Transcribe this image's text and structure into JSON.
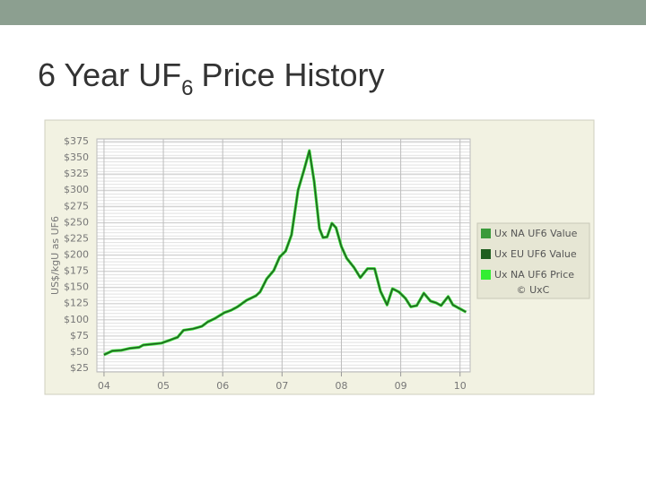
{
  "slide": {
    "title": {
      "main": "6 Year UF",
      "subscript": "6",
      "rest": "Price History"
    }
  },
  "chart_data": {
    "type": "line",
    "ylabel": "US$/kgU as UF6",
    "source": "© UxC",
    "x": [
      2004.0,
      2004.14,
      2004.29,
      2004.44,
      2004.59,
      2004.66,
      2004.82,
      2004.97,
      2005.12,
      2005.24,
      2005.34,
      2005.5,
      2005.65,
      2005.75,
      2005.87,
      2006.03,
      2006.15,
      2006.25,
      2006.4,
      2006.56,
      2006.63,
      2006.74,
      2006.86,
      2006.96,
      2007.06,
      2007.16,
      2007.27,
      2007.37,
      2007.46,
      2007.54,
      2007.63,
      2007.69,
      2007.76,
      2007.84,
      2007.91,
      2008.0,
      2008.09,
      2008.21,
      2008.32,
      2008.44,
      2008.56,
      2008.66,
      2008.77,
      2008.86,
      2008.97,
      2009.08,
      2009.17,
      2009.27,
      2009.39,
      2009.5,
      2009.6,
      2009.68,
      2009.8,
      2009.88,
      2009.98,
      2010.1
    ],
    "series": [
      {
        "name": "Ux NA UF6 Price",
        "color": "#33ee33",
        "values": [
          46,
          52,
          53,
          56,
          57.5,
          61,
          62.5,
          64,
          69,
          73,
          84,
          86,
          90,
          97,
          102,
          111,
          115,
          120,
          130,
          137,
          143,
          163,
          176,
          197,
          206,
          231,
          300,
          331,
          361,
          314,
          241,
          227,
          228,
          249,
          242,
          213,
          195,
          181,
          165,
          179,
          179,
          144,
          123,
          148,
          143,
          133,
          120,
          122,
          141,
          129,
          126,
          122,
          136,
          123,
          118,
          112
        ]
      },
      {
        "name": "Ux NA UF6 Value",
        "color": "#3a9a3a",
        "values": [
          46,
          52,
          53,
          56,
          57.5,
          61,
          62.5,
          64,
          69,
          73,
          84,
          86,
          90,
          97,
          102,
          111,
          115,
          120,
          130,
          137,
          143,
          163,
          176,
          197,
          206,
          231,
          300,
          331,
          361,
          314,
          241,
          227,
          228,
          249,
          242,
          213,
          195,
          181,
          165,
          179,
          179,
          144,
          123,
          148,
          143,
          133,
          120,
          122,
          141,
          129,
          126,
          122,
          136,
          123,
          118,
          112
        ]
      },
      {
        "name": "Ux EU UF6 Value",
        "color": "#1f5e1f",
        "values": [
          46,
          52,
          53,
          56,
          57.5,
          61,
          62.5,
          64,
          69,
          73,
          84,
          86,
          90,
          97,
          102,
          111,
          115,
          120,
          130,
          137,
          143,
          163,
          176,
          197,
          206,
          231,
          300,
          331,
          361,
          314,
          241,
          227,
          228,
          249,
          242,
          213,
          195,
          181,
          165,
          179,
          179,
          144,
          123,
          148,
          143,
          133,
          120,
          122,
          141,
          129,
          126,
          122,
          136,
          123,
          118,
          112
        ]
      }
    ],
    "legend_order": [
      1,
      2,
      0
    ],
    "xlim": [
      2003.88,
      2010.17
    ],
    "xticks": [
      {
        "value": 2004,
        "label": "04"
      },
      {
        "value": 2005,
        "label": "05"
      },
      {
        "value": 2006,
        "label": "06"
      },
      {
        "value": 2007,
        "label": "07"
      },
      {
        "value": 2008,
        "label": "08"
      },
      {
        "value": 2009,
        "label": "09"
      },
      {
        "value": 2010,
        "label": "10"
      }
    ],
    "ylim": [
      25,
      375
    ],
    "yticks": [
      {
        "value": 25,
        "label": "$25"
      },
      {
        "value": 50,
        "label": "$50"
      },
      {
        "value": 75,
        "label": "$75"
      },
      {
        "value": 100,
        "label": "$100"
      },
      {
        "value": 125,
        "label": "$125"
      },
      {
        "value": 150,
        "label": "$150"
      },
      {
        "value": 175,
        "label": "$175"
      },
      {
        "value": 200,
        "label": "$200"
      },
      {
        "value": 225,
        "label": "$225"
      },
      {
        "value": 250,
        "label": "$250"
      },
      {
        "value": 275,
        "label": "$275"
      },
      {
        "value": 300,
        "label": "$300"
      },
      {
        "value": 325,
        "label": "$325"
      },
      {
        "value": 350,
        "label": "$350"
      },
      {
        "value": 375,
        "label": "$375"
      }
    ],
    "grid": true
  }
}
